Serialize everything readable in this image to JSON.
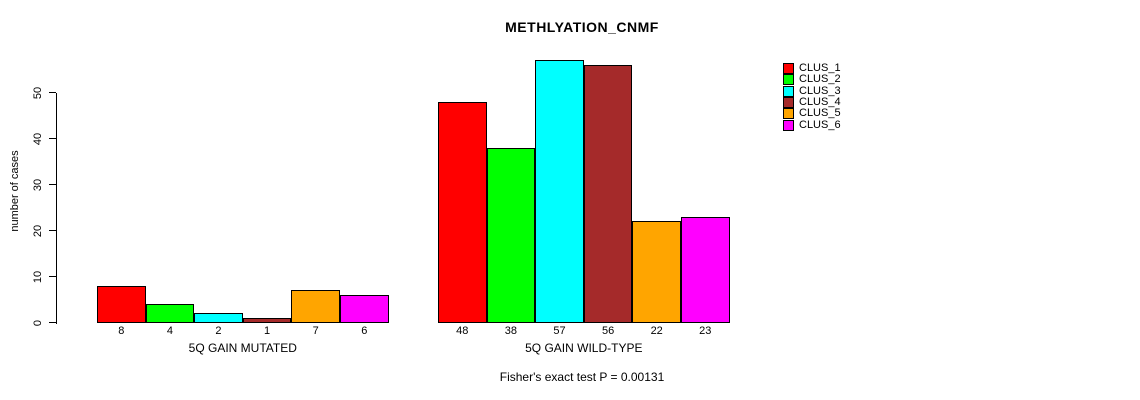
{
  "chart_data": {
    "type": "bar",
    "title": "METHLYATION_CNMF",
    "ylabel": "number of cases",
    "xlabel": "",
    "ylim": [
      0,
      57
    ],
    "yticks": [
      0,
      10,
      20,
      30,
      40,
      50
    ],
    "grid": false,
    "legend_position": "right",
    "groups": [
      {
        "label": "5Q GAIN MUTATED",
        "values": [
          8,
          4,
          2,
          1,
          7,
          6
        ]
      },
      {
        "label": "5Q GAIN WILD-TYPE",
        "values": [
          48,
          38,
          57,
          56,
          22,
          23
        ]
      }
    ],
    "series_colors": [
      "#ff0000",
      "#00ff00",
      "#00ffff",
      "#a52a2a",
      "#ffa500",
      "#ff00ff"
    ],
    "legend": [
      {
        "label": "CLUS_1",
        "color": "#ff0000"
      },
      {
        "label": "CLUS_2",
        "color": "#00ff00"
      },
      {
        "label": "CLUS_3",
        "color": "#00ffff"
      },
      {
        "label": "CLUS_4",
        "color": "#a52a2a"
      },
      {
        "label": "CLUS_5",
        "color": "#ffa500"
      },
      {
        "label": "CLUS_6",
        "color": "#ff00ff"
      }
    ],
    "annotation": "Fisher's exact test P = 0.00131"
  }
}
